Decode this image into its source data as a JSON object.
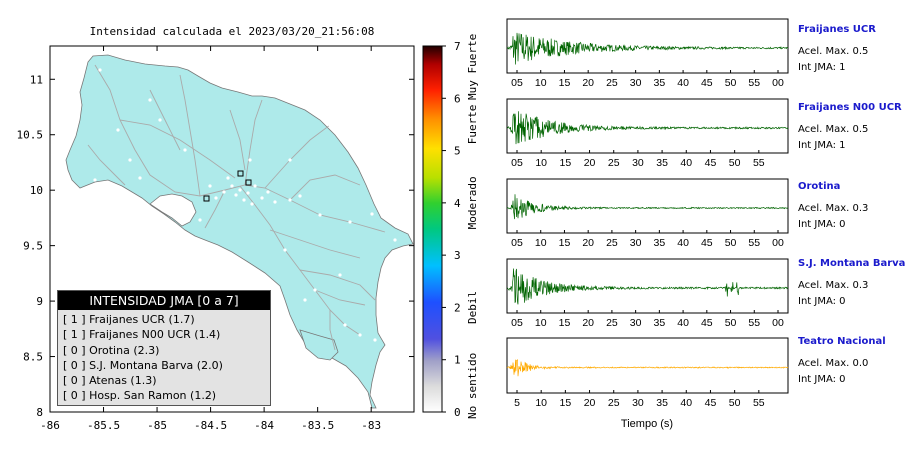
{
  "map": {
    "title": "Intensidad calculada el 2023/03/20_21:56:08",
    "x_ticks": [
      "-86",
      "-85.5",
      "-85",
      "-84.5",
      "-84",
      "-83.5",
      "-83"
    ],
    "y_ticks": [
      "11",
      "10.5",
      "10",
      "9.5",
      "9",
      "8.5",
      "8"
    ],
    "colorbar": {
      "ticks": [
        "0",
        "1",
        "2",
        "3",
        "4",
        "5",
        "6",
        "7"
      ],
      "category_labels": [
        "No sentido",
        "Debil",
        "Moderado",
        "Fuerte",
        "Muy Fuerte"
      ]
    },
    "legend": {
      "title": "INTENSIDAD JMA [0 a 7]",
      "items": [
        "[ 1 ]  Fraijanes UCR (1.7)",
        "[ 1 ]  Fraijanes N00 UCR (1.4)",
        "[ 0 ]  Orotina (2.3)",
        "[ 0 ]  S.J. Montana Barva (2.0)",
        "[ 0 ]  Atenas (1.3)",
        "[ 0 ]  Hosp. San Ramon (1.2)"
      ]
    },
    "colors": {
      "land": "#aeeaea",
      "road": "#b0b0b0",
      "outline": "#666666"
    }
  },
  "waveforms": {
    "xlabel": "Tiempo (s)",
    "stations": [
      {
        "name": "Fraijanes UCR",
        "acel": "Acel. Max. 0.5",
        "jma": "Int JMA: 1",
        "color": "#006400",
        "ticks": [
          "05",
          "10",
          "15",
          "20",
          "25",
          "30",
          "35",
          "40",
          "45",
          "50",
          "55",
          "00"
        ],
        "amp": 0.75,
        "decay": 0.18,
        "spikes": []
      },
      {
        "name": "Fraijanes N00 UCR",
        "acel": "Acel. Max. 0.5",
        "jma": "Int JMA: 1",
        "color": "#006400",
        "ticks": [
          "05",
          "10",
          "15",
          "20",
          "25",
          "30",
          "35",
          "40",
          "45",
          "50",
          "55"
        ],
        "amp": 0.85,
        "decay": 0.12,
        "spikes": []
      },
      {
        "name": "Orotina",
        "acel": "Acel. Max. 0.3",
        "jma": "Int JMA: 0",
        "color": "#006400",
        "ticks": [
          "05",
          "10",
          "15",
          "20",
          "25",
          "30",
          "35",
          "40",
          "45",
          "50",
          "55",
          "00"
        ],
        "amp": 0.6,
        "decay": 0.07,
        "spikes": []
      },
      {
        "name": "S.J. Montana Barva",
        "acel": "Acel. Max. 0.3",
        "jma": "Int JMA: 0",
        "color": "#006400",
        "ticks": [
          "05",
          "10",
          "15",
          "20",
          "25",
          "30",
          "35",
          "40",
          "45",
          "50",
          "55",
          "00"
        ],
        "amp": 0.85,
        "decay": 0.1,
        "spikes": [
          0.78,
          0.8,
          0.82
        ]
      },
      {
        "name": "Teatro Nacional",
        "acel": "Acel. Max. 0.0",
        "jma": "Int JMA: 0",
        "color": "#ffaa00",
        "ticks": [
          "5",
          "10",
          "15",
          "20",
          "25",
          "30",
          "35",
          "40",
          "45",
          "50",
          "55"
        ],
        "amp": 0.55,
        "decay": 0.04,
        "spikes": []
      }
    ]
  },
  "chart_data": [
    {
      "type": "scatter",
      "title": "Intensidad calculada el 2023/03/20_21:56:08",
      "xlim": [
        -86,
        -82.6
      ],
      "ylim": [
        8,
        11.3
      ],
      "colorbar_range": [
        0,
        7
      ],
      "legend": [
        "Fraijanes UCR (1.7)",
        "Fraijanes N00 UCR (1.4)",
        "Orotina (2.3)",
        "S.J. Montana Barva (2.0)",
        "Atenas (1.3)",
        "Hosp. San Ramon (1.2)"
      ]
    },
    {
      "type": "line",
      "xlabel": "Tiempo (s)",
      "series": [
        {
          "name": "Fraijanes UCR",
          "acel_max": 0.5,
          "int_jma": 1
        },
        {
          "name": "Fraijanes N00 UCR",
          "acel_max": 0.5,
          "int_jma": 1
        },
        {
          "name": "Orotina",
          "acel_max": 0.3,
          "int_jma": 0
        },
        {
          "name": "S.J. Montana Barva",
          "acel_max": 0.3,
          "int_jma": 0
        },
        {
          "name": "Teatro Nacional",
          "acel_max": 0.0,
          "int_jma": 0
        }
      ]
    }
  ]
}
